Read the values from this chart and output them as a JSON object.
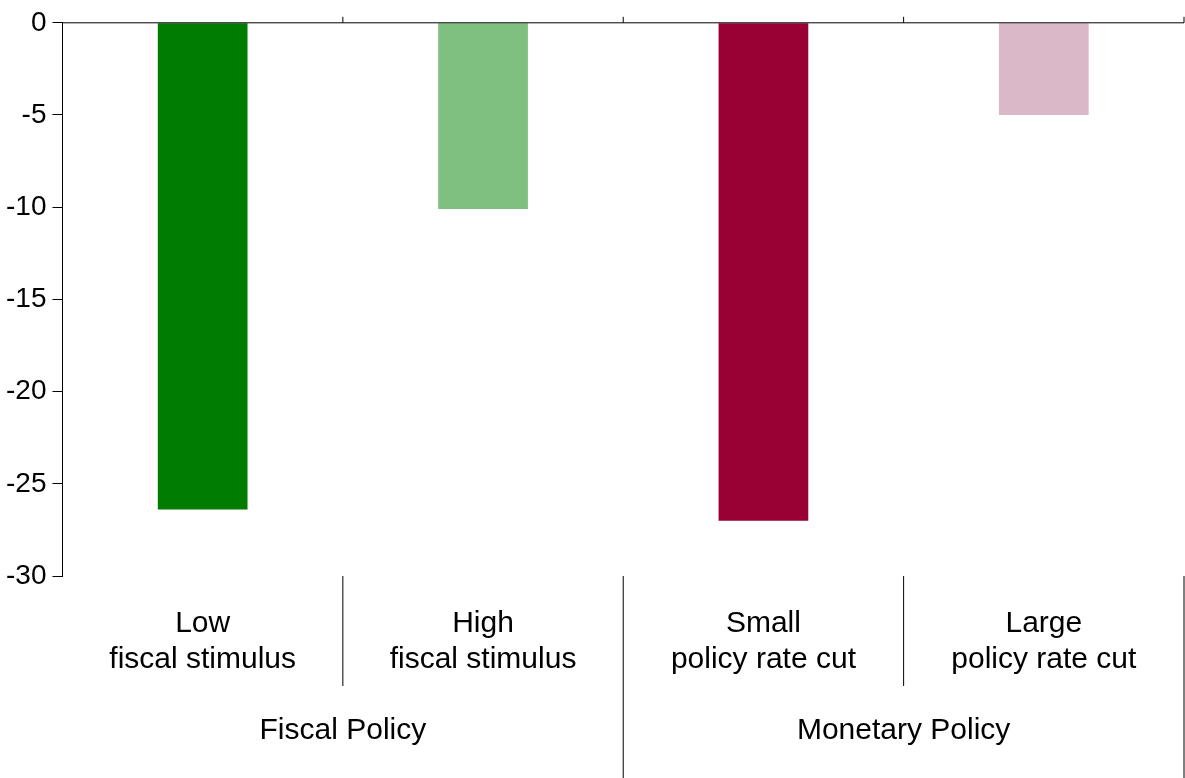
{
  "chart_data": {
    "type": "bar",
    "categories": [
      "Low\nfiscal stimulus",
      "High\nfiscal stimulus",
      "Small\npolicy rate cut",
      "Large\npolicy rate cut"
    ],
    "values": [
      -26.4,
      -10.1,
      -27,
      -5
    ],
    "colors": [
      "#007c00",
      "#7fbf7f",
      "#990033",
      "#dbb8c8"
    ],
    "ylim": [
      -30,
      0
    ],
    "yticks": [
      0,
      -5,
      -10,
      -15,
      -20,
      -25,
      -30
    ],
    "grid": false,
    "legend": false,
    "annotations": [
      "Fiscal Policy",
      "Monetary Policy"
    ]
  }
}
